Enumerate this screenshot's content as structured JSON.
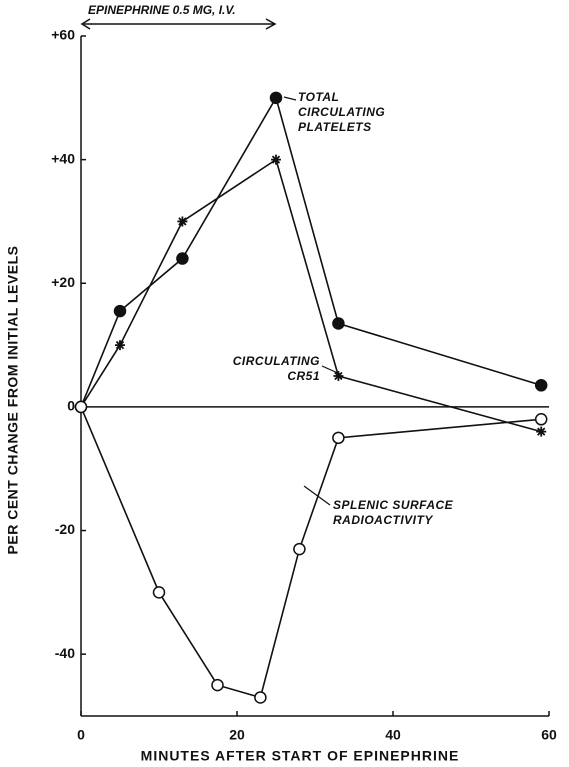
{
  "chart_data": {
    "type": "line",
    "xlabel": "MINUTES AFTER START OF EPINEPHRINE",
    "ylabel": "PER CENT CHANGE FROM INITIAL LEVELS",
    "annotation": "EPINEPHRINE 0.5 MG, I.V.",
    "xlim": [
      0,
      60
    ],
    "xticks": [
      0,
      20,
      40,
      60
    ],
    "ylim": [
      -50,
      60
    ],
    "yticks": [
      {
        "value": 60,
        "label": "+60"
      },
      {
        "value": 40,
        "label": "+40"
      },
      {
        "value": 20,
        "label": "+20"
      },
      0,
      -20,
      -40
    ],
    "grid": false,
    "series": [
      {
        "name": "TOTAL CIRCULATING PLATELETS",
        "color": "#111111",
        "marker": "filled-circle",
        "x": [
          0,
          5,
          13,
          25,
          33,
          59
        ],
        "values": [
          0,
          15.5,
          24,
          50,
          13.5,
          3.5
        ]
      },
      {
        "name": "CIRCULATING CR51",
        "color": "#111111",
        "marker": "asterisk",
        "x": [
          0,
          5,
          13,
          25,
          33,
          59
        ],
        "values": [
          0,
          10,
          30,
          40,
          5,
          -4
        ]
      },
      {
        "name": "SPLENIC SURFACE RADIOACTIVITY",
        "color": "#111111",
        "marker": "open-circle",
        "x": [
          0,
          10,
          17.5,
          23,
          28,
          33,
          59
        ],
        "values": [
          0,
          -30,
          -45,
          -47,
          -23,
          -5,
          -2
        ]
      }
    ]
  }
}
